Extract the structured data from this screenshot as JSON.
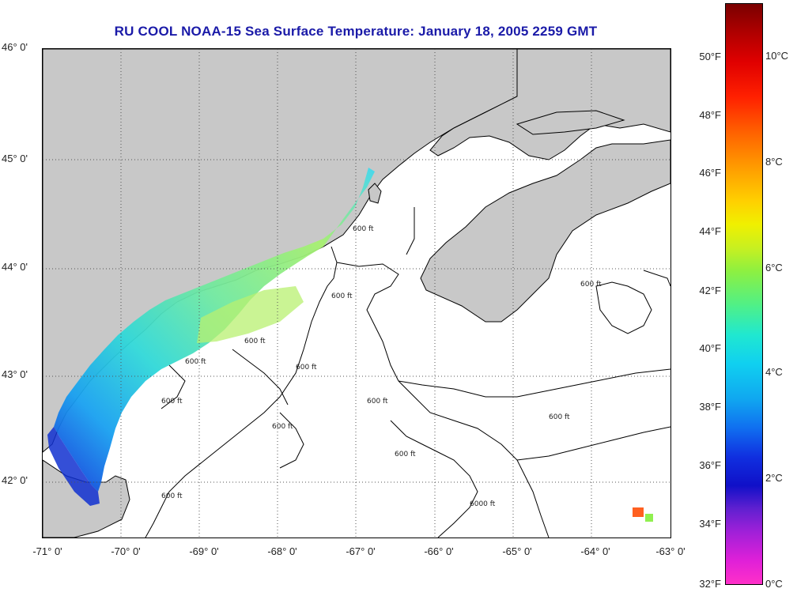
{
  "title": "RU COOL  NOAA-15  Sea Surface Temperature:  January 18, 2005 2259 GMT",
  "latitude_labels": [
    "46° 0'",
    "45° 0'",
    "44° 0'",
    "43° 0'",
    "42° 0'"
  ],
  "longitude_labels": [
    "-71° 0'",
    "-70° 0'",
    "-69° 0'",
    "-68° 0'",
    "-67° 0'",
    "-66° 0'",
    "-65° 0'",
    "-64° 0'",
    "-63° 0'"
  ],
  "colorbar": {
    "fahrenheit_labels": [
      "50°F",
      "48°F",
      "46°F",
      "44°F",
      "42°F",
      "40°F",
      "38°F",
      "36°F",
      "34°F",
      "32°F"
    ],
    "celsius_labels": [
      "10°C",
      "8°C",
      "6°C",
      "4°C",
      "2°C",
      "0°C"
    ]
  },
  "contour_labels": {
    "l1": "600 ft",
    "l2": "600 ft",
    "l3": "600 ft",
    "l4": "600 ft",
    "l5": "600 ft",
    "l6": "600 ft",
    "l7": "600 ft",
    "l8": "600 ft",
    "l9": "600 ft",
    "l10": "600 ft",
    "l11": "600 ft",
    "l12": "600 ft",
    "l13": "6000 ft"
  },
  "colors": {
    "land": "#c8c8c8",
    "title": "#1a1aa8",
    "grid": "#555555",
    "sst_cold": "#1040e0",
    "sst_mid": "#20c8f0",
    "sst_warm": "#8ef070"
  }
}
